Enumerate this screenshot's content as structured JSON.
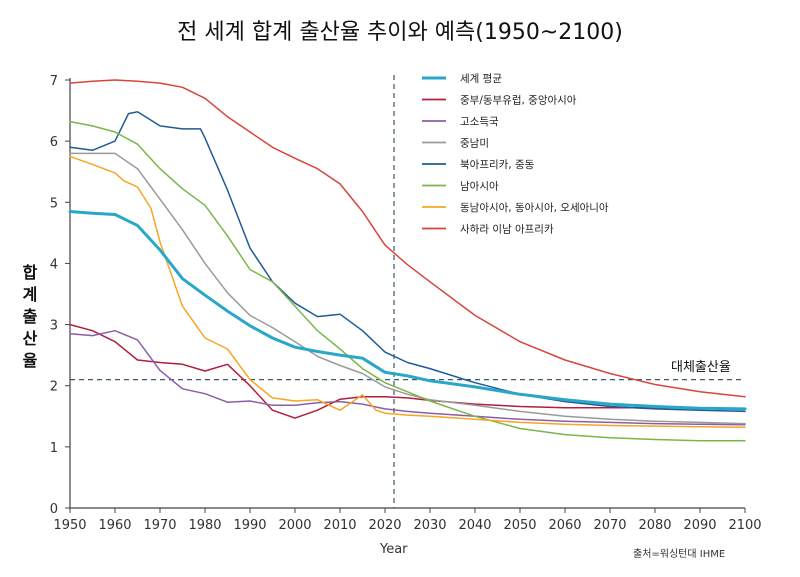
{
  "title": "전 세계 합계 출산율 추이와 예측(1950~2100)",
  "source": "출처=워싱턴대 IHME",
  "reference_label": "대체출산율",
  "chart_data": {
    "type": "line",
    "ylabel": "합계출산율",
    "xlabel": "Year",
    "xlim": [
      1950,
      2100
    ],
    "ylim": [
      0,
      7
    ],
    "xticks": [
      1950,
      1960,
      1970,
      1980,
      1990,
      2000,
      2010,
      2020,
      2030,
      2040,
      2050,
      2060,
      2070,
      2080,
      2090,
      2100
    ],
    "yticks": [
      0,
      1,
      2,
      3,
      4,
      5,
      6,
      7
    ],
    "grid": false,
    "legend_position": "top-center",
    "reference_lines": [
      {
        "axis": "y",
        "value": 2.1,
        "label": "대체출산율",
        "style": "dashed"
      },
      {
        "axis": "x",
        "value": 2022,
        "style": "dashed"
      }
    ],
    "series": [
      {
        "name": "세계 평균",
        "color": "#29a7c9",
        "width": 3,
        "x": [
          1950,
          1955,
          1960,
          1965,
          1970,
          1975,
          1980,
          1985,
          1990,
          1995,
          2000,
          2005,
          2010,
          2015,
          2020,
          2025,
          2030,
          2040,
          2050,
          2060,
          2070,
          2080,
          2090,
          2100
        ],
        "y": [
          4.85,
          4.82,
          4.8,
          4.62,
          4.22,
          3.75,
          3.48,
          3.22,
          2.98,
          2.78,
          2.63,
          2.56,
          2.5,
          2.45,
          2.22,
          2.16,
          2.08,
          1.98,
          1.86,
          1.77,
          1.7,
          1.66,
          1.63,
          1.62
        ]
      },
      {
        "name": "중부/동부유럽, 중앙아시아",
        "color": "#b01f3e",
        "width": 1.5,
        "x": [
          1950,
          1955,
          1960,
          1965,
          1970,
          1975,
          1980,
          1985,
          1990,
          1995,
          2000,
          2005,
          2010,
          2015,
          2020,
          2025,
          2030,
          2040,
          2050,
          2060,
          2070,
          2080,
          2090,
          2100
        ],
        "y": [
          3.0,
          2.9,
          2.72,
          2.42,
          2.38,
          2.35,
          2.24,
          2.35,
          2.0,
          1.6,
          1.47,
          1.6,
          1.78,
          1.82,
          1.82,
          1.8,
          1.76,
          1.7,
          1.66,
          1.64,
          1.64,
          1.64,
          1.63,
          1.62
        ]
      },
      {
        "name": "고소득국",
        "color": "#8d5ea6",
        "width": 1.5,
        "x": [
          1950,
          1955,
          1960,
          1965,
          1970,
          1975,
          1980,
          1985,
          1990,
          1995,
          2000,
          2005,
          2010,
          2015,
          2020,
          2025,
          2030,
          2040,
          2050,
          2060,
          2070,
          2080,
          2090,
          2100
        ],
        "y": [
          2.85,
          2.82,
          2.9,
          2.75,
          2.25,
          1.95,
          1.87,
          1.73,
          1.75,
          1.68,
          1.68,
          1.72,
          1.74,
          1.7,
          1.62,
          1.58,
          1.55,
          1.5,
          1.45,
          1.42,
          1.4,
          1.38,
          1.37,
          1.36
        ]
      },
      {
        "name": "중남미",
        "color": "#9a9a9a",
        "width": 1.5,
        "x": [
          1950,
          1955,
          1960,
          1965,
          1970,
          1975,
          1980,
          1985,
          1990,
          1995,
          2000,
          2005,
          2010,
          2015,
          2020,
          2025,
          2030,
          2040,
          2050,
          2060,
          2070,
          2080,
          2090,
          2100
        ],
        "y": [
          5.8,
          5.8,
          5.8,
          5.55,
          5.05,
          4.55,
          4.0,
          3.52,
          3.15,
          2.95,
          2.72,
          2.48,
          2.33,
          2.2,
          1.98,
          1.86,
          1.77,
          1.68,
          1.58,
          1.5,
          1.45,
          1.42,
          1.4,
          1.38
        ]
      },
      {
        "name": "북아프리카, 중동",
        "color": "#1f5b96",
        "width": 1.5,
        "x": [
          1950,
          1955,
          1960,
          1963,
          1965,
          1970,
          1975,
          1979,
          1980,
          1985,
          1990,
          1995,
          2000,
          2005,
          2010,
          2015,
          2020,
          2025,
          2030,
          2040,
          2050,
          2060,
          2070,
          2080,
          2090,
          2100
        ],
        "y": [
          5.9,
          5.85,
          6.0,
          6.45,
          6.48,
          6.25,
          6.2,
          6.2,
          6.05,
          5.2,
          4.25,
          3.7,
          3.35,
          3.13,
          3.17,
          2.9,
          2.55,
          2.38,
          2.28,
          2.05,
          1.86,
          1.74,
          1.66,
          1.62,
          1.6,
          1.58
        ]
      },
      {
        "name": "남아시아",
        "color": "#7ab648",
        "width": 1.5,
        "x": [
          1950,
          1955,
          1960,
          1965,
          1970,
          1975,
          1980,
          1985,
          1990,
          1995,
          2000,
          2005,
          2010,
          2015,
          2020,
          2025,
          2030,
          2040,
          2050,
          2060,
          2070,
          2080,
          2090,
          2100
        ],
        "y": [
          6.32,
          6.25,
          6.15,
          5.95,
          5.55,
          5.22,
          4.95,
          4.45,
          3.9,
          3.7,
          3.3,
          2.9,
          2.6,
          2.28,
          2.05,
          1.9,
          1.75,
          1.5,
          1.3,
          1.2,
          1.15,
          1.12,
          1.1,
          1.1
        ]
      },
      {
        "name": "동남아시아, 동아시아, 오세아니아",
        "color": "#f5a623",
        "width": 1.5,
        "x": [
          1950,
          1955,
          1960,
          1962,
          1965,
          1968,
          1970,
          1975,
          1980,
          1985,
          1990,
          1995,
          2000,
          2005,
          2010,
          2013,
          2015,
          2018,
          2020,
          2025,
          2030,
          2040,
          2050,
          2060,
          2070,
          2080,
          2090,
          2100
        ],
        "y": [
          5.75,
          5.62,
          5.48,
          5.35,
          5.25,
          4.9,
          4.35,
          3.3,
          2.78,
          2.6,
          2.1,
          1.8,
          1.75,
          1.77,
          1.6,
          1.75,
          1.85,
          1.6,
          1.55,
          1.52,
          1.5,
          1.45,
          1.4,
          1.37,
          1.35,
          1.34,
          1.33,
          1.32
        ]
      },
      {
        "name": "사하라 이남 아프리카",
        "color": "#d9453d",
        "width": 1.5,
        "x": [
          1950,
          1955,
          1960,
          1965,
          1970,
          1975,
          1980,
          1985,
          1990,
          1995,
          2000,
          2005,
          2010,
          2015,
          2020,
          2025,
          2030,
          2040,
          2050,
          2060,
          2070,
          2080,
          2090,
          2100
        ],
        "y": [
          6.95,
          6.98,
          7.0,
          6.98,
          6.95,
          6.88,
          6.7,
          6.4,
          6.15,
          5.9,
          5.72,
          5.55,
          5.3,
          4.85,
          4.3,
          3.98,
          3.7,
          3.15,
          2.72,
          2.42,
          2.2,
          2.02,
          1.9,
          1.82
        ]
      }
    ]
  }
}
